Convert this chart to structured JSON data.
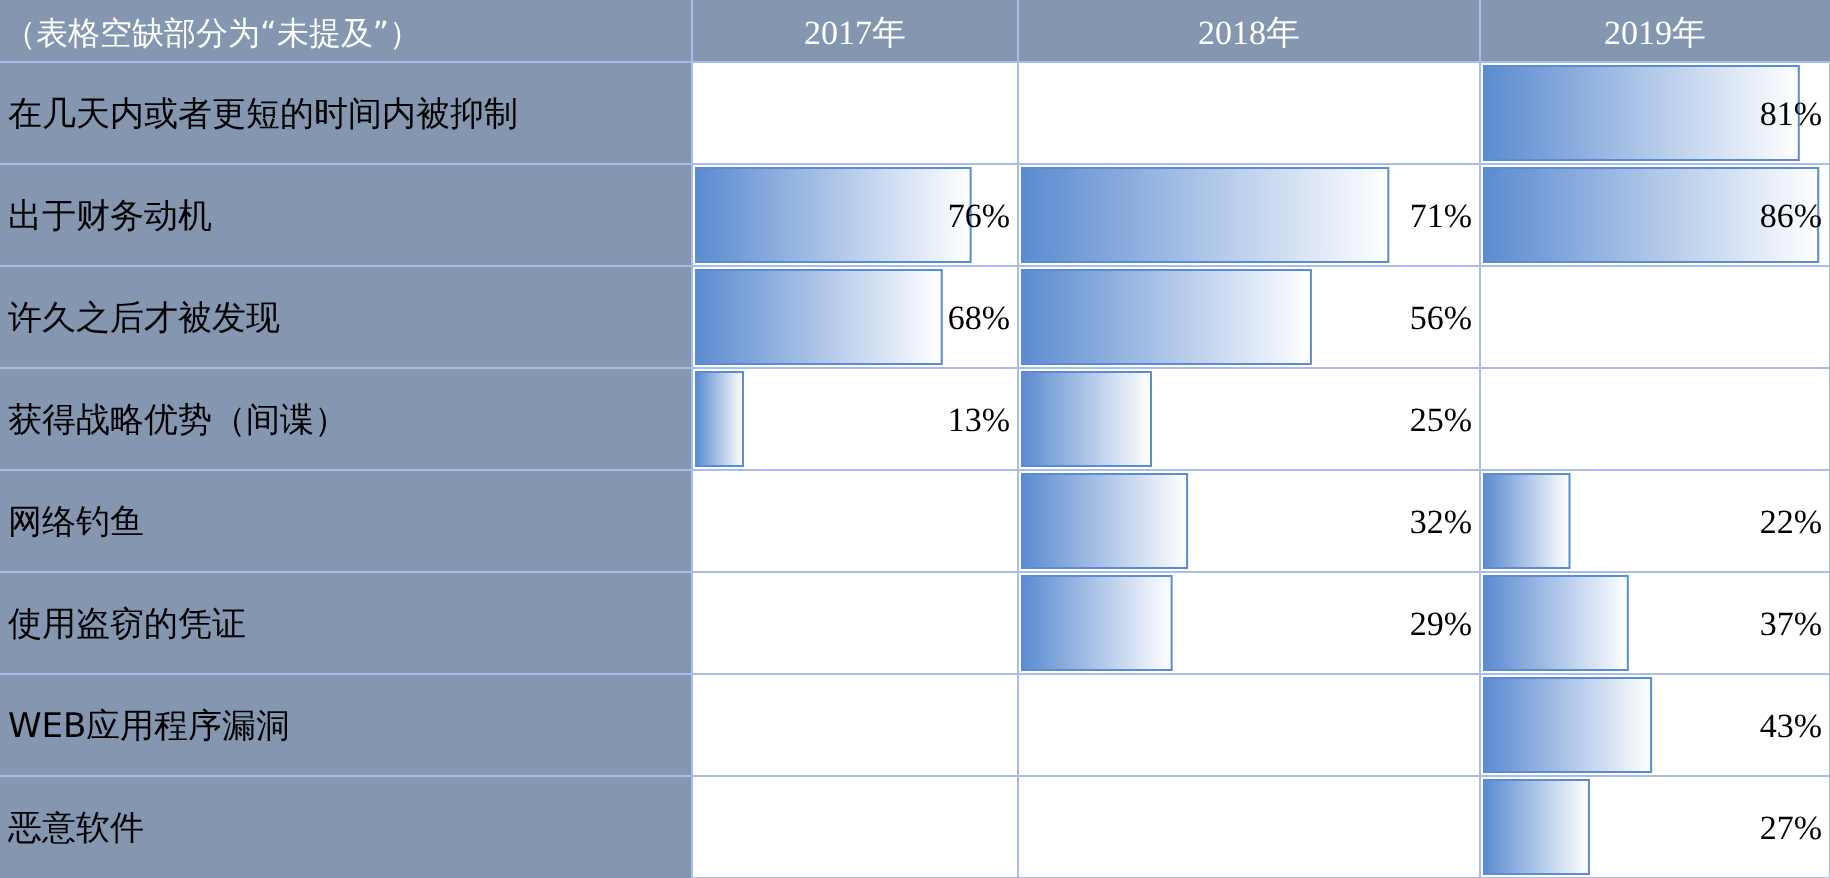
{
  "chart_data": [
    {
      "type": "bar",
      "orientation": "horizontal",
      "title": "2017年",
      "annotations": [
        "（表格空缺部分为“未提及”）"
      ],
      "tick_labels": "y",
      "color": "#5b8bd0",
      "xlim": [
        0,
        88
      ],
      "categories": [
        "在几天内或者更短的时间内被抑制",
        "出于财务动机",
        "许久之后才被发现",
        "获得战略优势（间谍）",
        "网络钓鱼",
        "使用盗窃的凭证",
        "WEB应用程序漏洞",
        "恶意软件"
      ],
      "values": [
        null,
        76,
        68,
        13,
        null,
        null,
        null,
        null
      ],
      "value_labels": [
        null,
        "76%",
        "68%",
        "13%",
        null,
        null,
        null,
        null
      ]
    },
    {
      "type": "bar",
      "orientation": "horizontal",
      "title": "2018年",
      "tick_labels": false,
      "color": "#5b8bd0",
      "xlim": [
        0,
        88
      ],
      "values": [
        null,
        71,
        56,
        25,
        32,
        29,
        null,
        null
      ],
      "value_labels": [
        null,
        "71%",
        "56%",
        "25%",
        "32%",
        "29%",
        null,
        null
      ]
    },
    {
      "type": "bar",
      "orientation": "horizontal",
      "title": "2019年",
      "tick_labels": false,
      "color": "#5b8bd0",
      "xlim": [
        0,
        88
      ],
      "values": [
        81,
        86,
        null,
        null,
        22,
        37,
        43,
        27
      ],
      "value_labels": [
        "81%",
        "86%",
        null,
        null,
        "22%",
        "37%",
        "43%",
        "27%"
      ]
    }
  ]
}
